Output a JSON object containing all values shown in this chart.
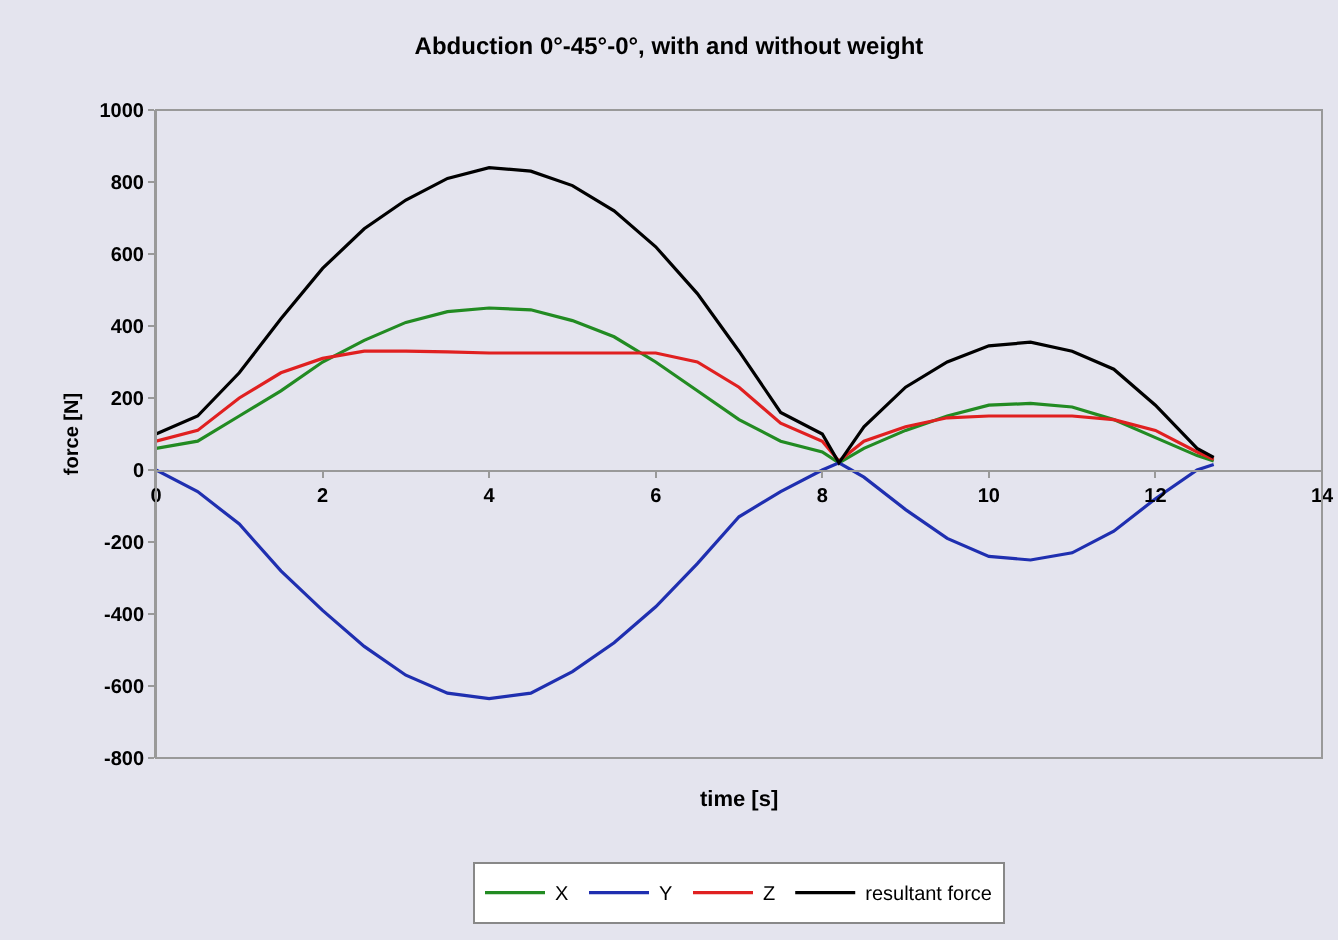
{
  "chart_data": {
    "type": "line",
    "title": "Abduction 0°-45°-0°, with and without weight",
    "xlabel": "time [s]",
    "ylabel": "force [N]",
    "x": [
      0,
      0.5,
      1,
      1.5,
      2,
      2.5,
      3,
      3.5,
      4,
      4.5,
      5,
      5.5,
      6,
      6.5,
      7,
      7.5,
      8,
      8.2,
      8.5,
      9,
      9.5,
      10,
      10.5,
      11,
      11.5,
      12,
      12.5,
      12.7
    ],
    "series": [
      {
        "name": "X",
        "color": "#228b22",
        "values": [
          60,
          80,
          150,
          220,
          300,
          360,
          410,
          440,
          450,
          445,
          415,
          370,
          300,
          220,
          140,
          80,
          50,
          20,
          60,
          110,
          150,
          180,
          185,
          175,
          140,
          90,
          40,
          25
        ]
      },
      {
        "name": "Y",
        "color": "#1f2fb0",
        "values": [
          0,
          -60,
          -150,
          -280,
          -390,
          -490,
          -570,
          -620,
          -635,
          -620,
          -560,
          -480,
          -380,
          -260,
          -130,
          -60,
          0,
          20,
          -20,
          -110,
          -190,
          -240,
          -250,
          -230,
          -170,
          -80,
          0,
          15
        ]
      },
      {
        "name": "Z",
        "color": "#e02020",
        "values": [
          80,
          110,
          200,
          270,
          310,
          330,
          330,
          328,
          325,
          325,
          325,
          325,
          325,
          300,
          230,
          130,
          80,
          25,
          80,
          120,
          145,
          150,
          150,
          150,
          140,
          110,
          50,
          30
        ]
      },
      {
        "name": "resultant force",
        "color": "#000000",
        "values": [
          100,
          150,
          270,
          420,
          560,
          670,
          750,
          810,
          840,
          830,
          790,
          720,
          620,
          490,
          330,
          160,
          100,
          20,
          120,
          230,
          300,
          345,
          355,
          330,
          280,
          180,
          60,
          35
        ]
      }
    ],
    "xlim": [
      0,
      14
    ],
    "xticks": [
      0,
      2,
      4,
      6,
      8,
      10,
      12,
      14
    ],
    "ylim": [
      -800,
      1000
    ],
    "yticks": [
      -800,
      -600,
      -400,
      -200,
      0,
      200,
      400,
      600,
      800,
      1000
    ],
    "grid": false,
    "legend": "bottom",
    "marker": "none",
    "line_style": "solid"
  }
}
